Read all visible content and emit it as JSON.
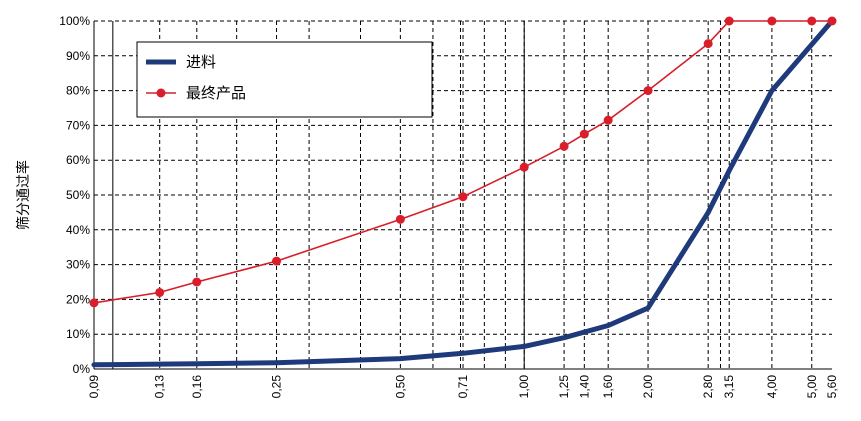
{
  "chart_data": {
    "type": "line",
    "title": "",
    "xlabel": "",
    "ylabel": "筛分通过率",
    "x_scale": "log",
    "x_range": [
      0.09,
      5.6
    ],
    "ylim": [
      0,
      100
    ],
    "grid": true,
    "legend_position": "top-left",
    "x_tick_labels": [
      "0,09",
      "0,13",
      "0,16",
      "0,25",
      "0,50",
      "0,71",
      "1,00",
      "1,25",
      "1,40",
      "1,60",
      "2,00",
      "2,80",
      "3,15",
      "4,00",
      "5,00",
      "5,60"
    ],
    "x_tick_values": [
      0.09,
      0.13,
      0.16,
      0.25,
      0.5,
      0.71,
      1.0,
      1.25,
      1.4,
      1.6,
      2.0,
      2.8,
      3.15,
      4.0,
      5.0,
      5.6
    ],
    "y_tick_labels": [
      "0%",
      "10%",
      "20%",
      "30%",
      "40%",
      "50%",
      "60%",
      "70%",
      "80%",
      "90%",
      "100%"
    ],
    "y_tick_values": [
      0,
      10,
      20,
      30,
      40,
      50,
      60,
      70,
      80,
      90,
      100
    ],
    "series": [
      {
        "name": "进料",
        "color": "#1f3a7a",
        "marker": "none",
        "x": [
          0.09,
          0.13,
          0.16,
          0.25,
          0.5,
          0.71,
          1.0,
          1.25,
          1.6,
          2.0,
          2.8,
          3.15,
          4.0,
          5.6
        ],
        "y": [
          1.2,
          1.4,
          1.5,
          1.8,
          3.0,
          4.5,
          6.5,
          9.0,
          12.5,
          17.5,
          45,
          57,
          80,
          100
        ]
      },
      {
        "name": "最终产品",
        "color": "#d81e2a",
        "marker": "circle",
        "x": [
          0.09,
          0.13,
          0.16,
          0.25,
          0.5,
          0.71,
          1.0,
          1.25,
          1.4,
          1.6,
          2.0,
          2.8,
          3.15,
          4.0,
          5.0,
          5.6
        ],
        "y": [
          19,
          22,
          25,
          31,
          43,
          49.5,
          58,
          64,
          67.5,
          71.5,
          80,
          93.5,
          100,
          100,
          100,
          100
        ]
      }
    ]
  }
}
